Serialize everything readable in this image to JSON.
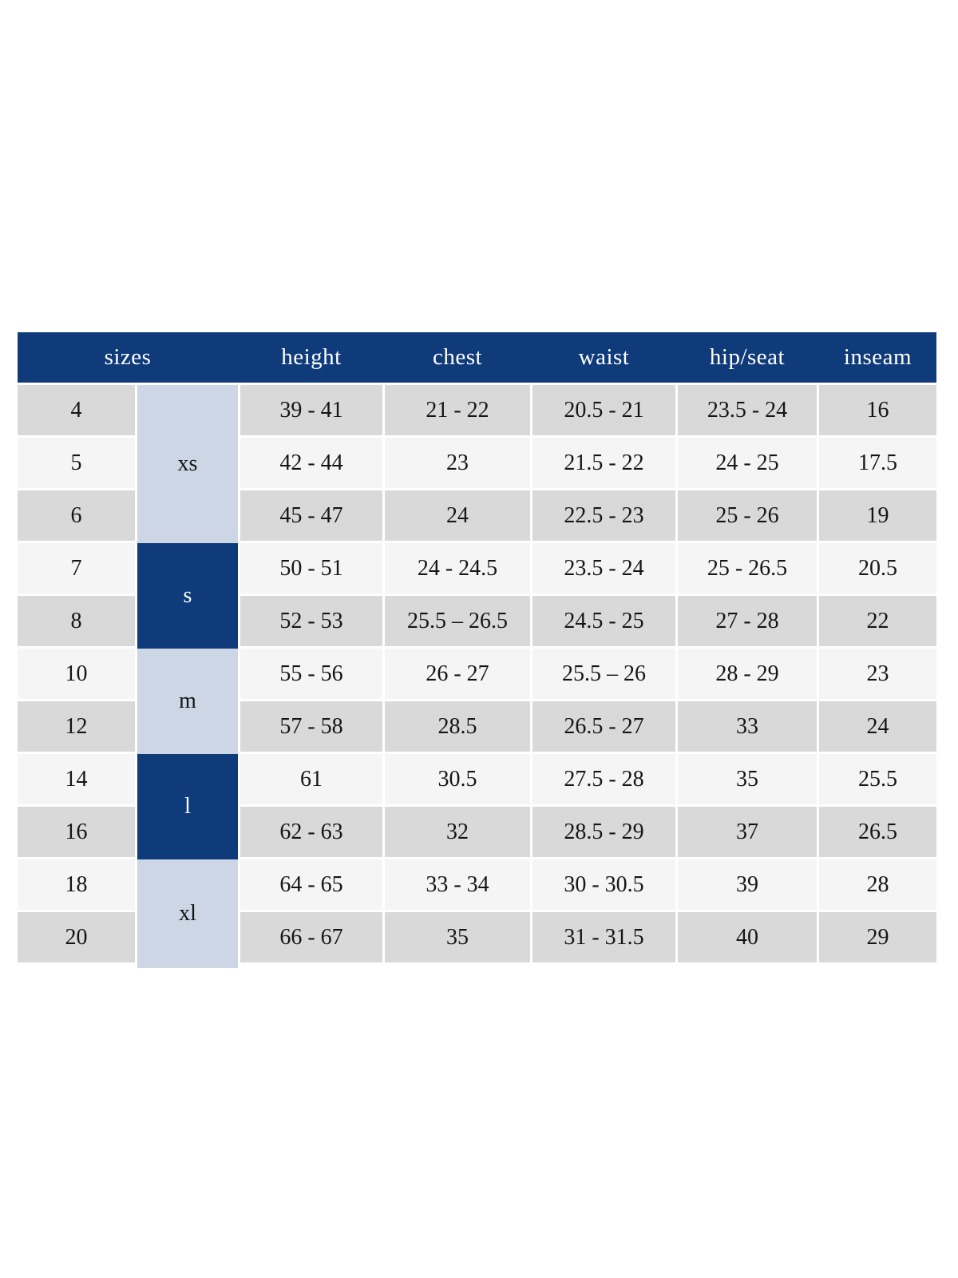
{
  "colors": {
    "header_bg": "#0f3b7a",
    "dark_group_cell": "#0f3b7a",
    "light_group_cell": "#ccd6e4",
    "row_gray": "#d9d9d9",
    "row_light": "#f5f5f5",
    "header_text": "#ffffff",
    "body_text": "#151515"
  },
  "chart_data": {
    "type": "table",
    "columns": [
      "sizes",
      "height",
      "chest",
      "waist",
      "hip/seat",
      "inseam"
    ],
    "size_groups": [
      {
        "label": "xs",
        "row_span": 3,
        "style": "light"
      },
      {
        "label": "s",
        "row_span": 2,
        "style": "dark"
      },
      {
        "label": "m",
        "row_span": 2,
        "style": "light"
      },
      {
        "label": "l",
        "row_span": 2,
        "style": "dark"
      },
      {
        "label": "xl",
        "row_span": 2,
        "style": "light"
      }
    ],
    "rows": [
      {
        "size": "4",
        "group": "xs",
        "height": "39 - 41",
        "chest": "21 - 22",
        "waist": "20.5 - 21",
        "hip_seat": "23.5 - 24",
        "inseam": "16"
      },
      {
        "size": "5",
        "group": "xs",
        "height": "42 - 44",
        "chest": "23",
        "waist": "21.5 - 22",
        "hip_seat": "24 - 25",
        "inseam": "17.5"
      },
      {
        "size": "6",
        "group": "xs",
        "height": "45 - 47",
        "chest": "24",
        "waist": "22.5 - 23",
        "hip_seat": "25 - 26",
        "inseam": "19"
      },
      {
        "size": "7",
        "group": "s",
        "height": "50 - 51",
        "chest": "24 - 24.5",
        "waist": "23.5 - 24",
        "hip_seat": "25 - 26.5",
        "inseam": "20.5"
      },
      {
        "size": "8",
        "group": "s",
        "height": "52 - 53",
        "chest": "25.5 – 26.5",
        "waist": "24.5 - 25",
        "hip_seat": "27 - 28",
        "inseam": "22"
      },
      {
        "size": "10",
        "group": "m",
        "height": "55 - 56",
        "chest": "26 - 27",
        "waist": "25.5 – 26",
        "hip_seat": "28 - 29",
        "inseam": "23"
      },
      {
        "size": "12",
        "group": "m",
        "height": "57 - 58",
        "chest": "28.5",
        "waist": "26.5 - 27",
        "hip_seat": "33",
        "inseam": "24"
      },
      {
        "size": "14",
        "group": "l",
        "height": "61",
        "chest": "30.5",
        "waist": "27.5 - 28",
        "hip_seat": "35",
        "inseam": "25.5"
      },
      {
        "size": "16",
        "group": "l",
        "height": "62 - 63",
        "chest": "32",
        "waist": "28.5 - 29",
        "hip_seat": "37",
        "inseam": "26.5"
      },
      {
        "size": "18",
        "group": "xl",
        "height": "64 - 65",
        "chest": "33 - 34",
        "waist": "30 - 30.5",
        "hip_seat": "39",
        "inseam": "28"
      },
      {
        "size": "20",
        "group": "xl",
        "height": "66 - 67",
        "chest": "35",
        "waist": "31 - 31.5",
        "hip_seat": "40",
        "inseam": "29"
      }
    ]
  }
}
